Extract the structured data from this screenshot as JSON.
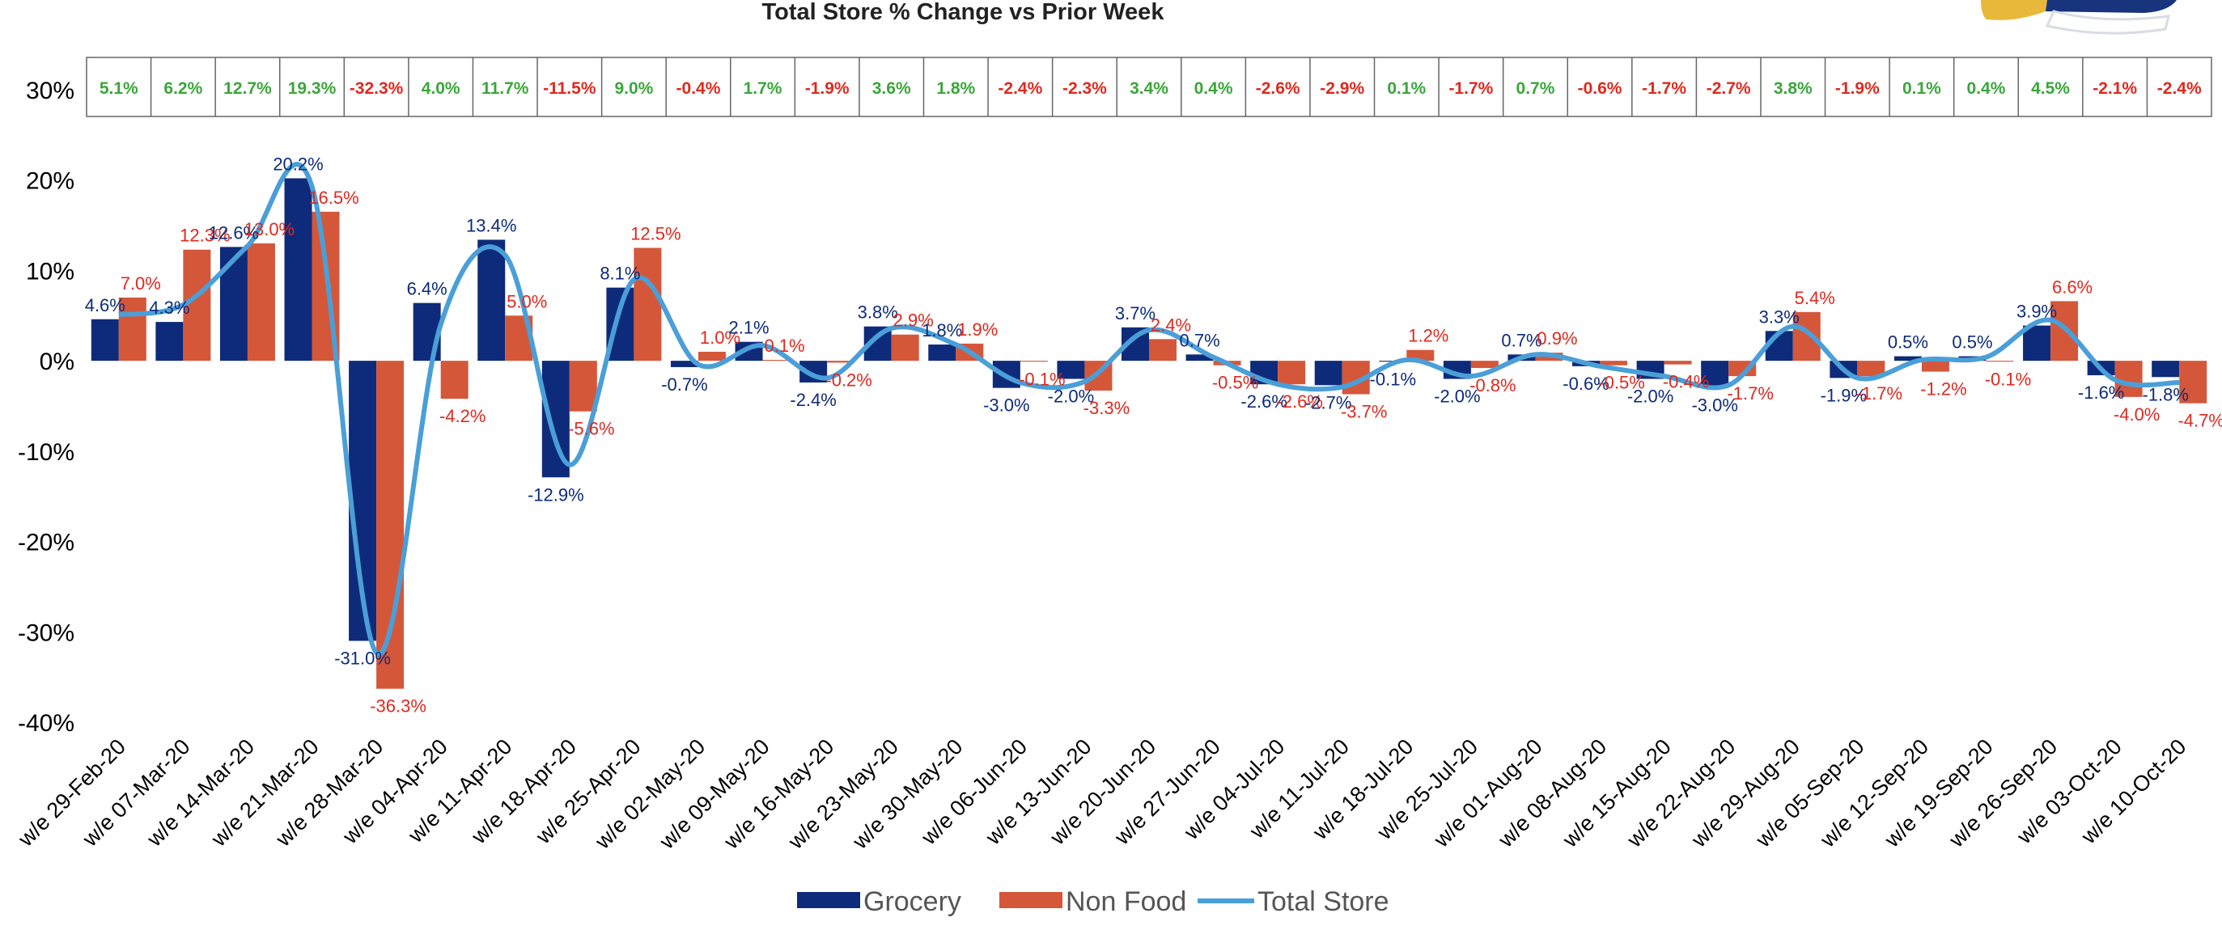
{
  "chart_data": {
    "type": "bar",
    "title": "Total Store % Change vs Prior Week",
    "categories": [
      "w/e 29-Feb-20",
      "w/e 07-Mar-20",
      "w/e 14-Mar-20",
      "w/e 21-Mar-20",
      "w/e 28-Mar-20",
      "w/e 04-Apr-20",
      "w/e 11-Apr-20",
      "w/e 18-Apr-20",
      "w/e 25-Apr-20",
      "w/e 02-May-20",
      "w/e 09-May-20",
      "w/e 16-May-20",
      "w/e 23-May-20",
      "w/e 30-May-20",
      "w/e 06-Jun-20",
      "w/e 13-Jun-20",
      "w/e 20-Jun-20",
      "w/e 27-Jun-20",
      "w/e 04-Jul-20",
      "w/e 11-Jul-20",
      "w/e 18-Jul-20",
      "w/e 25-Jul-20",
      "w/e 01-Aug-20",
      "w/e 08-Aug-20",
      "w/e 15-Aug-20",
      "w/e 22-Aug-20",
      "w/e 29-Aug-20",
      "w/e 05-Sep-20",
      "w/e 12-Sep-20",
      "w/e 19-Sep-20",
      "w/e 26-Sep-20",
      "w/e 03-Oct-20",
      "w/e 10-Oct-20"
    ],
    "series": [
      {
        "name": "Grocery",
        "type": "bar",
        "color": "#0d2b7a",
        "values": [
          4.6,
          4.3,
          12.6,
          20.2,
          -31.0,
          6.4,
          13.4,
          -12.9,
          8.1,
          -0.7,
          2.1,
          -2.4,
          3.8,
          1.8,
          -3.0,
          -2.0,
          3.7,
          0.7,
          -2.6,
          -2.7,
          -0.1,
          -2.0,
          0.7,
          -0.6,
          -2.0,
          -3.0,
          3.3,
          -1.9,
          0.5,
          0.5,
          3.9,
          -1.6,
          -1.8
        ],
        "labels": [
          "4.6%",
          "4.3%",
          "12.6%",
          "20.2%",
          "-31.0%",
          "6.4%",
          "13.4%",
          "-12.9%",
          "8.1%",
          "-0.7%",
          "2.1%",
          "-2.4%",
          "3.8%",
          "1.8%",
          "-3.0%",
          "-2.0%",
          "3.7%",
          "0.7%",
          "-2.6%",
          "-2.7%",
          "-0.1%",
          "-2.0%",
          "0.7%",
          "-0.6%",
          "-2.0%",
          "-3.0%",
          "3.3%",
          "-1.9%",
          "0.5%",
          "0.5%",
          "3.9%",
          "-1.6%",
          "-1.8%"
        ]
      },
      {
        "name": "Non Food",
        "type": "bar",
        "color": "#d4573a",
        "values": [
          7.0,
          12.3,
          13.0,
          16.5,
          -36.3,
          -4.2,
          5.0,
          -5.6,
          12.5,
          1.0,
          0.1,
          -0.2,
          2.9,
          1.9,
          -0.1,
          -3.3,
          2.4,
          -0.5,
          -2.6,
          -3.7,
          1.2,
          -0.8,
          0.9,
          -0.5,
          -0.4,
          -1.7,
          5.4,
          -1.7,
          -1.2,
          -0.1,
          6.6,
          -4.0,
          -4.7
        ],
        "labels": [
          "7.0%",
          "12.3%",
          "13.0%",
          "16.5%",
          "-36.3%",
          "-4.2%",
          "5.0%",
          "-5.6%",
          "12.5%",
          "1.0%",
          "0.1%",
          "-0.2%",
          "2.9%",
          "1.9%",
          "-0.1%",
          "-3.3%",
          "2.4%",
          "-0.5%",
          "-2.6%",
          "-3.7%",
          "1.2%",
          "-0.8%",
          "0.9%",
          "-0.5%",
          "-0.4%",
          "-1.7%",
          "5.4%",
          "-1.7%",
          "-1.2%",
          "-0.1%",
          "6.6%",
          "-4.0%",
          "-4.7%"
        ]
      },
      {
        "name": "Total Store",
        "type": "line",
        "color": "#4a9fd8",
        "values": [
          5.1,
          6.2,
          12.7,
          19.3,
          -32.3,
          4.0,
          11.7,
          -11.5,
          9.0,
          -0.4,
          1.7,
          -1.9,
          3.6,
          1.8,
          -2.4,
          -2.3,
          3.4,
          0.4,
          -2.6,
          -2.9,
          0.1,
          -1.7,
          0.7,
          -0.6,
          -1.7,
          -2.7,
          3.8,
          -1.9,
          0.1,
          0.4,
          4.5,
          -2.1,
          -2.4
        ],
        "labels": [
          "5.1%",
          "6.2%",
          "12.7%",
          "19.3%",
          "-32.3%",
          "4.0%",
          "11.7%",
          "-11.5%",
          "9.0%",
          "-0.4%",
          "1.7%",
          "-1.9%",
          "3.6%",
          "1.8%",
          "-2.4%",
          "-2.3%",
          "3.4%",
          "0.4%",
          "-2.6%",
          "-2.9%",
          "0.1%",
          "-1.7%",
          "0.7%",
          "-0.6%",
          "-1.7%",
          "-2.7%",
          "3.8%",
          "-1.9%",
          "0.1%",
          "0.4%",
          "4.5%",
          "-2.1%",
          "-2.4%"
        ]
      }
    ],
    "ylim": [
      -40,
      30
    ],
    "yticks": [
      "30%",
      "20%",
      "10%",
      "0%",
      "-10%",
      "-20%",
      "-30%",
      "-40%"
    ],
    "ytick_values": [
      30,
      20,
      10,
      0,
      -10,
      -20,
      -30,
      -40
    ],
    "grid": false,
    "legend_position": "bottom",
    "colors": {
      "positive": "#3aa63a",
      "negative": "#e0281e",
      "grocery_label": "#0d2b7a",
      "nonfood_label": "#e0281e",
      "axis_text": "#000000",
      "legend_text": "#555555"
    }
  }
}
